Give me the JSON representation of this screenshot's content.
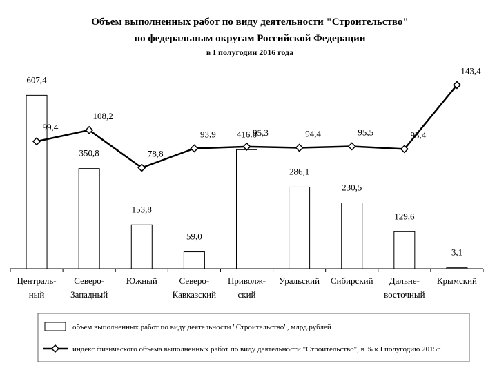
{
  "chart_data": {
    "type": "bar-line",
    "title": [
      "Объем выполненных работ по виду деятельности \"Строительство\"",
      "по федеральным округам Российской Федерации"
    ],
    "subtitle": "в I полугодии 2016 года",
    "categories": [
      "Централь-\nный",
      "Северо-\nЗападный",
      "Южный",
      "Северо-\nКавказский",
      "Приволж-\nский",
      "Уральский",
      "Сибирский",
      "Дальне-\nвосточный",
      "Крымский"
    ],
    "series": [
      {
        "name": "объем выполненных работ по виду деятельности \"Строительство\", млрд.рублей",
        "type": "bar",
        "color": "#ffffff",
        "values": [
          607.4,
          350.8,
          153.8,
          59.0,
          416.8,
          286.1,
          230.5,
          129.6,
          3.1
        ],
        "value_labels": [
          "607,4",
          "350,8",
          "153,8",
          "59,0",
          "416.8",
          "286,1",
          "230,5",
          "129,6",
          "3,1"
        ]
      },
      {
        "name": "индекс физического объема выполненных работ по виду деятельности \"Строительство\", в % к I полугодию 2015г.",
        "type": "line",
        "axis": "y2",
        "color": "#000000",
        "values": [
          99.4,
          108.2,
          78.8,
          93.9,
          95.3,
          94.4,
          95.5,
          93.4,
          143.4
        ],
        "value_labels": [
          "99,4",
          "108,2",
          "78,8",
          "93,9",
          "95,3",
          "94,4",
          "95,5",
          "93,4",
          "143,4"
        ]
      }
    ],
    "ylim": [
      0,
      700
    ],
    "y2lim": [
      0,
      156
    ]
  }
}
